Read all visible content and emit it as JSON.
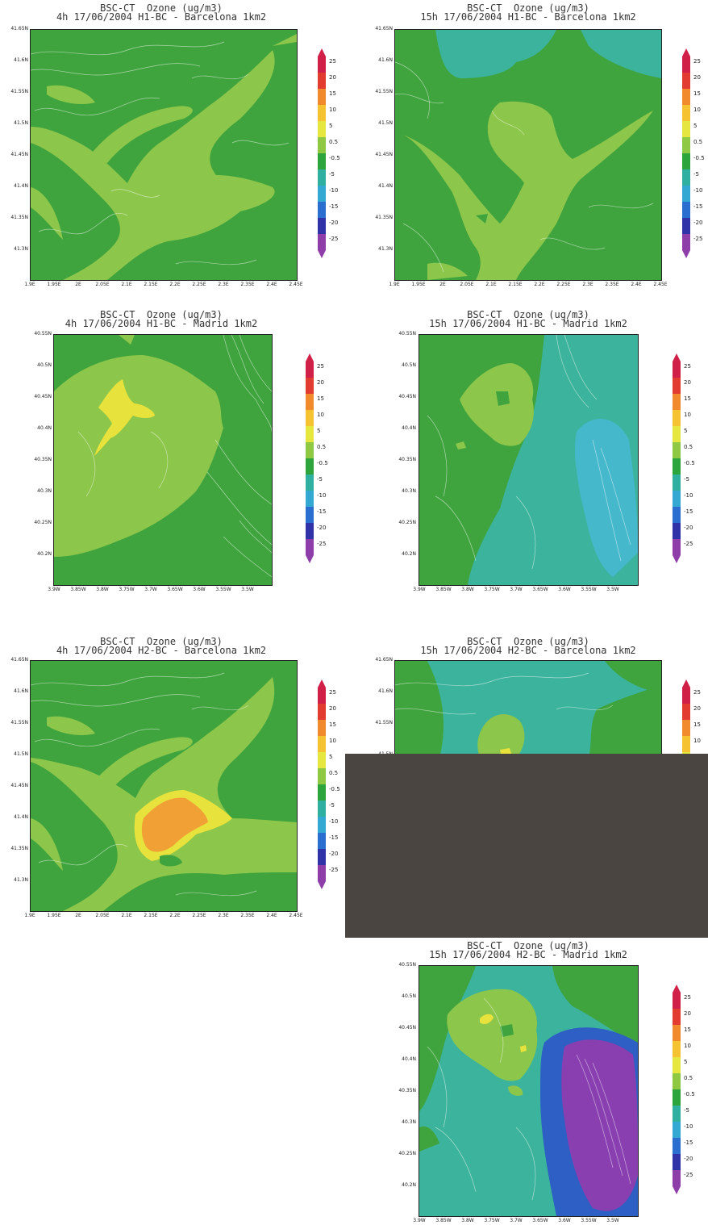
{
  "colorbar": {
    "levels": [
      "25",
      "20",
      "15",
      "10",
      "5",
      "0.5",
      "-0.5",
      "-5",
      "-10",
      "-15",
      "-20",
      "-25"
    ],
    "colors": [
      "#d02048",
      "#e23b30",
      "#f08a2c",
      "#f5c232",
      "#e6e640",
      "#8fc843",
      "#2ea53c",
      "#2fb0a0",
      "#33a8d2",
      "#2a6fd0",
      "#3033a8",
      "#8e3ea8"
    ]
  },
  "palette": {
    "dark_green": "#3fa43e",
    "light_green": "#8cc64a",
    "yellow": "#e8e23c",
    "orange": "#f0a035",
    "teal": "#3cb39c",
    "cyan": "#45b8cc",
    "blue": "#2d5fc4",
    "purple": "#8a3fb0",
    "occluder": "#4b4542"
  },
  "panels": [
    {
      "id": "bcn-h1-4h",
      "title_line1": "BSC-CT  Ozone (ug/m3)",
      "title_line2": "4h 17/06/2004 H1-BC - Barcelona 1km2",
      "yticks": [
        "41.65N",
        "41.6N",
        "41.55N",
        "41.5N",
        "41.45N",
        "41.4N",
        "41.35N",
        "41.3N"
      ],
      "xticks": [
        "1.9E",
        "1.95E",
        "2E",
        "2.05E",
        "2.1E",
        "2.15E",
        "2.2E",
        "2.25E",
        "2.3E",
        "2.35E",
        "2.4E",
        "2.45E"
      ]
    },
    {
      "id": "bcn-h1-15h",
      "title_line1": "BSC-CT  Ozone (ug/m3)",
      "title_line2": "15h 17/06/2004 H1-BC - Barcelona 1km2",
      "yticks": [
        "41.65N",
        "41.6N",
        "41.55N",
        "41.5N",
        "41.45N",
        "41.4N",
        "41.35N",
        "41.3N"
      ],
      "xticks": [
        "1.9E",
        "1.95E",
        "2E",
        "2.05E",
        "2.1E",
        "2.15E",
        "2.2E",
        "2.25E",
        "2.3E",
        "2.35E",
        "2.4E",
        "2.45E"
      ]
    },
    {
      "id": "mad-h1-4h",
      "title_line1": "BSC-CT  Ozone (ug/m3)",
      "title_line2": "4h 17/06/2004 H1-BC - Madrid 1km2",
      "yticks": [
        "40.55N",
        "40.5N",
        "40.45N",
        "40.4N",
        "40.35N",
        "40.3N",
        "40.25N",
        "40.2N"
      ],
      "xticks": [
        "3.9W",
        "3.85W",
        "3.8W",
        "3.75W",
        "3.7W",
        "3.65W",
        "3.6W",
        "3.55W",
        "3.5W"
      ]
    },
    {
      "id": "mad-h1-15h",
      "title_line1": "BSC-CT  Ozone (ug/m3)",
      "title_line2": "15h 17/06/2004 H1-BC - Madrid 1km2",
      "yticks": [
        "40.55N",
        "40.5N",
        "40.45N",
        "40.4N",
        "40.35N",
        "40.3N",
        "40.25N",
        "40.2N"
      ],
      "xticks": [
        "3.9W",
        "3.85W",
        "3.8W",
        "3.75W",
        "3.7W",
        "3.65W",
        "3.6W",
        "3.55W",
        "3.5W"
      ]
    },
    {
      "id": "bcn-h2-4h",
      "title_line1": "BSC-CT  Ozone (ug/m3)",
      "title_line2": "4h 17/06/2004 H2-BC - Barcelona 1km2",
      "yticks": [
        "41.65N",
        "41.6N",
        "41.55N",
        "41.5N",
        "41.45N",
        "41.4N",
        "41.35N",
        "41.3N"
      ],
      "xticks": [
        "1.9E",
        "1.95E",
        "2E",
        "2.05E",
        "2.1E",
        "2.15E",
        "2.2E",
        "2.25E",
        "2.3E",
        "2.35E",
        "2.4E",
        "2.45E"
      ]
    },
    {
      "id": "bcn-h2-15h",
      "title_line1": "BSC-CT  Ozone (ug/m3)",
      "title_line2": "15h 17/06/2004 H2-BC - Barcelona 1km2",
      "yticks": [
        "41.65N",
        "41.6N",
        "41.55N",
        "41.5N"
      ],
      "xticks": []
    },
    {
      "id": "mad-h2-15h",
      "title_line1": "BSC-CT  Ozone (ug/m3)",
      "title_line2": "15h 17/06/2004 H2-BC - Madrid 1km2",
      "yticks": [
        "40.55N",
        "40.5N",
        "40.45N",
        "40.4N",
        "40.35N",
        "40.3N",
        "40.25N",
        "40.2N"
      ],
      "xticks": [
        "3.9W",
        "3.85W",
        "3.8W",
        "3.75W",
        "3.7W",
        "3.65W",
        "3.6W",
        "3.55W",
        "3.5W"
      ]
    }
  ],
  "chart_data": [
    {
      "type": "heatmap",
      "title": "BSC-CT  Ozone (ug/m3)",
      "subtitle": "4h 17/06/2004 H1-BC - Barcelona 1km2",
      "xlim": [
        "1.9E",
        "2.45E"
      ],
      "ylim": [
        "41.25N",
        "41.65N"
      ],
      "dominant_range": "0.5 to 5",
      "legend": "right"
    },
    {
      "type": "heatmap",
      "title": "BSC-CT  Ozone (ug/m3)",
      "subtitle": "15h 17/06/2004 H1-BC - Barcelona 1km2",
      "xlim": [
        "1.9E",
        "2.45E"
      ],
      "ylim": [
        "41.25N",
        "41.65N"
      ],
      "dominant_range": "-0.5 to 5",
      "legend": "right"
    },
    {
      "type": "heatmap",
      "title": "BSC-CT  Ozone (ug/m3)",
      "subtitle": "4h 17/06/2004 H1-BC - Madrid 1km2",
      "xlim": [
        "3.9W",
        "3.45W"
      ],
      "ylim": [
        "40.15N",
        "40.55N"
      ],
      "max_range": "5 to 10",
      "legend": "right"
    },
    {
      "type": "heatmap",
      "title": "BSC-CT  Ozone (ug/m3)",
      "subtitle": "15h 17/06/2004 H1-BC - Madrid 1km2",
      "xlim": [
        "3.9W",
        "3.45W"
      ],
      "ylim": [
        "40.15N",
        "40.55N"
      ],
      "min_range": "-10 to -5",
      "legend": "right"
    },
    {
      "type": "heatmap",
      "title": "BSC-CT  Ozone (ug/m3)",
      "subtitle": "4h 17/06/2004 H2-BC - Barcelona 1km2",
      "xlim": [
        "1.9E",
        "2.45E"
      ],
      "ylim": [
        "41.25N",
        "41.65N"
      ],
      "max_range": "15 to 20",
      "legend": "right"
    },
    {
      "type": "heatmap",
      "title": "BSC-CT  Ozone (ug/m3)",
      "subtitle": "15h 17/06/2004 H2-BC - Barcelona 1km2",
      "xlim": [
        "1.9E",
        "2.45E"
      ],
      "ylim": [
        "41.25N",
        "41.65N"
      ],
      "legend": "right"
    },
    {
      "type": "heatmap",
      "title": "BSC-CT  Ozone (ug/m3)",
      "subtitle": "15h 17/06/2004 H2-BC - Madrid 1km2",
      "xlim": [
        "3.9W",
        "3.45W"
      ],
      "ylim": [
        "40.15N",
        "40.55N"
      ],
      "min_range": "-25 to -20",
      "legend": "right"
    }
  ]
}
